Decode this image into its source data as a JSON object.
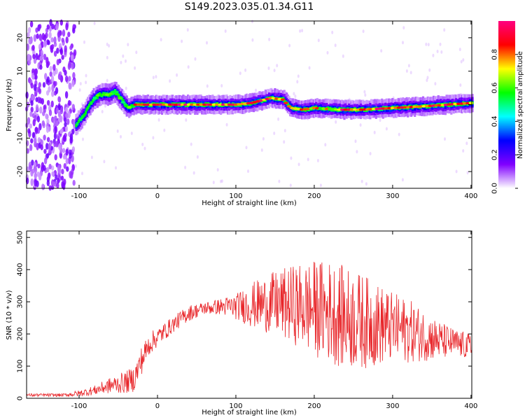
{
  "title": "S149.2023.035.01.34.G11",
  "chart_data": [
    {
      "type": "heatmap",
      "xlabel": "Height of straight line (km)",
      "ylabel": "Frequency (Hz)",
      "xlim": [
        -167,
        401
      ],
      "ylim": [
        -25,
        25
      ],
      "xticks": [
        -100,
        0,
        100,
        200,
        300,
        400
      ],
      "yticks": [
        -20,
        -10,
        0,
        10,
        20
      ],
      "ridge": {
        "x": [
          -105,
          -95,
          -85,
          -75,
          -62,
          -55,
          -45,
          -38,
          -30,
          0,
          50,
          100,
          120,
          145,
          160,
          170,
          185,
          200,
          230,
          260,
          300,
          340,
          370,
          401
        ],
        "y": [
          -6,
          -3,
          1,
          3,
          3,
          4,
          1,
          -1,
          0,
          0,
          0,
          0,
          0.5,
          2,
          1.5,
          -1,
          -1.5,
          -1,
          -1.5,
          -1.5,
          -1,
          -0.5,
          0,
          0.5
        ]
      },
      "colorbar": {
        "label": "Normalized spectral amplitude",
        "range": [
          0,
          1
        ],
        "ticks": [
          "0.0",
          "0.2",
          "0.4",
          "0.6",
          "0.8"
        ],
        "colors": [
          "#ffffff",
          "#8000ff",
          "#0000ff",
          "#00ffff",
          "#00ff00",
          "#ffff00",
          "#ff0000",
          "#ff0080"
        ]
      }
    },
    {
      "type": "line",
      "xlabel": "Height of straight line (km)",
      "ylabel": "SNR (10 * v/v)",
      "xlim": [
        -167,
        401
      ],
      "ylim": [
        0,
        520
      ],
      "xticks": [
        -100,
        0,
        100,
        200,
        300,
        400
      ],
      "yticks": [
        0,
        100,
        200,
        300,
        400,
        500
      ],
      "series": [
        {
          "color": "#e8262a",
          "envelope": {
            "x": [
              -167,
              -120,
              -100,
              -80,
              -60,
              -40,
              -30,
              -20,
              -10,
              0,
              20,
              40,
              60,
              80,
              100,
              120,
              150,
              180,
              200,
              220,
              240,
              260,
              280,
              300,
              320,
              340,
              360,
              380,
              401
            ],
            "mean": [
              10,
              10,
              15,
              25,
              40,
              50,
              60,
              120,
              170,
              190,
              230,
              265,
              280,
              285,
              285,
              290,
              295,
              290,
              280,
              270,
              250,
              240,
              230,
              220,
              210,
              195,
              180,
              170,
              160
            ],
            "spread": [
              5,
              5,
              10,
              15,
              25,
              35,
              40,
              45,
              35,
              30,
              25,
              25,
              20,
              25,
              40,
              70,
              100,
              130,
              150,
              160,
              160,
              150,
              130,
              110,
              100,
              80,
              60,
              45,
              40
            ]
          }
        }
      ]
    }
  ]
}
